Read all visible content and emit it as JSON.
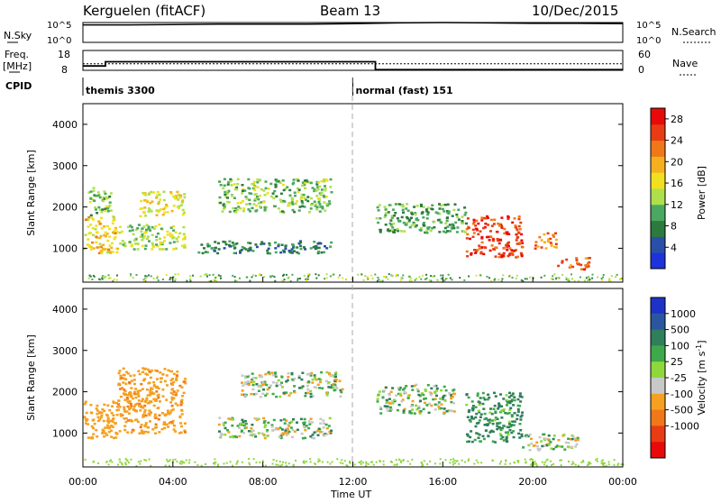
{
  "header": {
    "station": "Kerguelen (fitACF)",
    "beam": "Beam 13",
    "date": "10/Dec/2015"
  },
  "noise_panel": {
    "left_label": "N.Sky",
    "right_label": "N.Search",
    "left_ticks": [
      "10^5",
      "10^0"
    ],
    "right_ticks": [
      "10^5",
      "10^0"
    ]
  },
  "freq_panel": {
    "left_label_line1": "Freq.",
    "left_label_line2": "[MHz]",
    "right_label": "Nave",
    "left_ticks": [
      "18",
      "8"
    ],
    "right_ticks": [
      "60",
      "0"
    ]
  },
  "cpid": {
    "label": "CPID",
    "modes": [
      {
        "name": "themis 3300",
        "start_hour": 0
      },
      {
        "name": "normal (fast) 151",
        "start_hour": 12
      }
    ]
  },
  "x_axis": {
    "label": "Time UT",
    "ticks": [
      "00:00",
      "04:00",
      "08:00",
      "12:00",
      "16:00",
      "20:00",
      "00:00"
    ]
  },
  "colors": {
    "power": [
      "#1e32dc",
      "#2a4fa8",
      "#2c7a3e",
      "#4aa860",
      "#aee04c",
      "#f0e020",
      "#f5b020",
      "#f07818",
      "#e83c14",
      "#e80a0a"
    ],
    "velocity": [
      "#1e32c8",
      "#2a56a0",
      "#2f7e5c",
      "#3ea84a",
      "#8ed83c",
      "#c8c8c8",
      "#f5a020",
      "#f07818",
      "#e83c14",
      "#e80a0a"
    ]
  },
  "chart_data": [
    {
      "type": "line",
      "panel": "noise",
      "series": [
        {
          "name": "N.Sky",
          "x_hours": [
            0,
            2,
            4,
            6,
            8,
            10,
            12,
            14,
            16,
            18,
            20,
            22,
            24
          ],
          "values_log10": [
            4.4,
            4.4,
            4.5,
            4.6,
            4.6,
            4.6,
            4.7,
            4.9,
            5.0,
            4.9,
            4.8,
            4.8,
            4.7
          ]
        }
      ],
      "ylim_log10": [
        0,
        5
      ]
    },
    {
      "type": "line",
      "panel": "frequency",
      "series": [
        {
          "name": "Freq.",
          "axis": "left",
          "x_hours": [
            0,
            1,
            1,
            13,
            13,
            24
          ],
          "values": [
            10.2,
            10.2,
            12.3,
            12.3,
            8.3,
            8.3
          ]
        },
        {
          "name": "Nave",
          "axis": "right",
          "x_hours": [
            0,
            24
          ],
          "values": [
            20,
            20
          ]
        }
      ],
      "ylim_left": [
        8,
        18
      ],
      "ylim_right": [
        0,
        60
      ]
    },
    {
      "type": "heatmap",
      "panel": "power",
      "ylabel": "Slant Range [km]",
      "yticks": [
        1000,
        2000,
        3000,
        4000
      ],
      "ylim": [
        180,
        4500
      ],
      "xlim_hours": [
        0,
        24
      ],
      "colorbar": {
        "label": "Power [dB]",
        "ticks": [
          4,
          8,
          12,
          16,
          20,
          24,
          28
        ],
        "range": [
          0,
          30
        ]
      },
      "regions": [
        {
          "t0": 0.0,
          "t1": 1.5,
          "r0": 900,
          "r1": 1800,
          "value": 18
        },
        {
          "t0": 0.2,
          "t1": 1.2,
          "r0": 1800,
          "r1": 2500,
          "value": 12
        },
        {
          "t0": 1.5,
          "t1": 4.5,
          "r0": 1000,
          "r1": 1600,
          "value": 14
        },
        {
          "t0": 2.5,
          "t1": 4.5,
          "r0": 1800,
          "r1": 2400,
          "value": 16
        },
        {
          "t0": 5.0,
          "t1": 11.0,
          "r0": 900,
          "r1": 1200,
          "value": 8
        },
        {
          "t0": 6.0,
          "t1": 11.0,
          "r0": 1900,
          "r1": 2700,
          "value": 12
        },
        {
          "t0": 13.0,
          "t1": 17.0,
          "r0": 1400,
          "r1": 2100,
          "value": 10
        },
        {
          "t0": 17.0,
          "t1": 19.5,
          "r0": 800,
          "r1": 1800,
          "value": 26
        },
        {
          "t0": 20.0,
          "t1": 21.0,
          "r0": 1000,
          "r1": 1400,
          "value": 22
        },
        {
          "t0": 21.0,
          "t1": 22.5,
          "r0": 500,
          "r1": 800,
          "value": 24
        }
      ]
    },
    {
      "type": "heatmap",
      "panel": "velocity",
      "ylabel": "Slant Range [km]",
      "yticks": [
        1000,
        2000,
        3000,
        4000
      ],
      "ylim": [
        180,
        4500
      ],
      "xlim_hours": [
        0,
        24
      ],
      "colorbar": {
        "label": "Velocity [m s^-1]",
        "ticks": [
          1000,
          500,
          100,
          25,
          -25,
          -100,
          -500,
          -1000
        ]
      },
      "regions": [
        {
          "t0": 0.0,
          "t1": 1.5,
          "r0": 900,
          "r1": 1800,
          "value": -300
        },
        {
          "t0": 1.5,
          "t1": 4.5,
          "r0": 1000,
          "r1": 2600,
          "value": -400
        },
        {
          "t0": 6.0,
          "t1": 11.0,
          "r0": 900,
          "r1": 1400,
          "value": 0
        },
        {
          "t0": 7.0,
          "t1": 11.5,
          "r0": 1900,
          "r1": 2500,
          "value": 0
        },
        {
          "t0": 13.0,
          "t1": 16.5,
          "r0": 1500,
          "r1": 2200,
          "value": 0
        },
        {
          "t0": 17.0,
          "t1": 19.5,
          "r0": 800,
          "r1": 2000,
          "value": 150
        },
        {
          "t0": 19.5,
          "t1": 22.0,
          "r0": 600,
          "r1": 1000,
          "value": 0
        }
      ]
    }
  ]
}
